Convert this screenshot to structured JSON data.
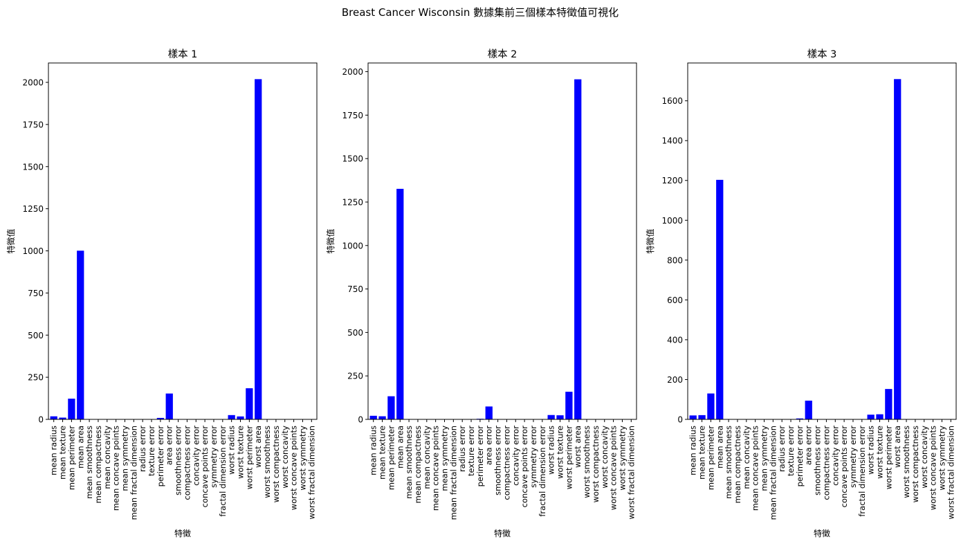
{
  "figure": {
    "suptitle": "Breast Cancer Wisconsin 數據集前三個樣本特徵值可視化"
  },
  "colors": {
    "bar": "#0000ff",
    "axis": "#000000",
    "background": "#ffffff"
  },
  "chart_data": [
    {
      "type": "bar",
      "title": "樣本 1",
      "xlabel": "特徵",
      "ylabel": "特徵值",
      "ylim": [
        0,
        2115
      ],
      "yticks": [
        0,
        250,
        500,
        750,
        1000,
        1250,
        1500,
        1750,
        2000
      ],
      "grid": false,
      "categories": [
        "mean radius",
        "mean texture",
        "mean perimeter",
        "mean area",
        "mean smoothness",
        "mean compactness",
        "mean concavity",
        "mean concave points",
        "mean symmetry",
        "mean fractal dimension",
        "radius error",
        "texture error",
        "perimeter error",
        "area error",
        "smoothness error",
        "compactness error",
        "concavity error",
        "concave points error",
        "symmetry error",
        "fractal dimension error",
        "worst radius",
        "worst texture",
        "worst perimeter",
        "worst area",
        "worst smoothness",
        "worst compactness",
        "worst concavity",
        "worst concave points",
        "worst symmetry",
        "worst fractal dimension"
      ],
      "values": [
        17.99,
        10.38,
        122.8,
        1001.0,
        0.1184,
        0.2776,
        0.3001,
        0.1471,
        0.2419,
        0.07871,
        1.095,
        0.9053,
        8.589,
        153.4,
        0.006399,
        0.04904,
        0.05373,
        0.01587,
        0.03003,
        0.006193,
        25.38,
        17.33,
        184.6,
        2019.0,
        0.1622,
        0.6656,
        0.7119,
        0.2654,
        0.4601,
        0.1189
      ]
    },
    {
      "type": "bar",
      "title": "樣本 2",
      "xlabel": "特徵",
      "ylabel": "特徵值",
      "ylim": [
        0,
        2050
      ],
      "yticks": [
        0,
        250,
        500,
        750,
        1000,
        1250,
        1500,
        1750,
        2000
      ],
      "grid": false,
      "categories": [
        "mean radius",
        "mean texture",
        "mean perimeter",
        "mean area",
        "mean smoothness",
        "mean compactness",
        "mean concavity",
        "mean concave points",
        "mean symmetry",
        "mean fractal dimension",
        "radius error",
        "texture error",
        "perimeter error",
        "area error",
        "smoothness error",
        "compactness error",
        "concavity error",
        "concave points error",
        "symmetry error",
        "fractal dimension error",
        "worst radius",
        "worst texture",
        "worst perimeter",
        "worst area",
        "worst smoothness",
        "worst compactness",
        "worst concavity",
        "worst concave points",
        "worst symmetry",
        "worst fractal dimension"
      ],
      "values": [
        20.57,
        17.77,
        132.9,
        1326.0,
        0.08474,
        0.07864,
        0.0869,
        0.07017,
        0.1812,
        0.05667,
        0.5435,
        0.7339,
        3.398,
        74.08,
        0.005225,
        0.01308,
        0.0186,
        0.0134,
        0.01389,
        0.003532,
        24.99,
        23.41,
        158.8,
        1956.0,
        0.1238,
        0.1866,
        0.2416,
        0.186,
        0.275,
        0.08902
      ]
    },
    {
      "type": "bar",
      "title": "樣本 3",
      "xlabel": "特徵",
      "ylabel": "特徵值",
      "ylim": [
        0,
        1790
      ],
      "yticks": [
        0,
        200,
        400,
        600,
        800,
        1000,
        1200,
        1400,
        1600
      ],
      "grid": false,
      "categories": [
        "mean radius",
        "mean texture",
        "mean perimeter",
        "mean area",
        "mean smoothness",
        "mean compactness",
        "mean concavity",
        "mean concave points",
        "mean symmetry",
        "mean fractal dimension",
        "radius error",
        "texture error",
        "perimeter error",
        "area error",
        "smoothness error",
        "compactness error",
        "concavity error",
        "concave points error",
        "symmetry error",
        "fractal dimension error",
        "worst radius",
        "worst texture",
        "worst perimeter",
        "worst area",
        "worst smoothness",
        "worst compactness",
        "worst concavity",
        "worst concave points",
        "worst symmetry",
        "worst fractal dimension"
      ],
      "values": [
        19.69,
        21.25,
        130.0,
        1203.0,
        0.1096,
        0.1599,
        0.1974,
        0.1279,
        0.2069,
        0.05999,
        0.7456,
        0.7869,
        4.585,
        94.03,
        0.00615,
        0.04006,
        0.03832,
        0.02058,
        0.0225,
        0.004571,
        23.57,
        25.53,
        152.5,
        1709.0,
        0.1444,
        0.4245,
        0.4504,
        0.243,
        0.3613,
        0.08758
      ]
    }
  ]
}
